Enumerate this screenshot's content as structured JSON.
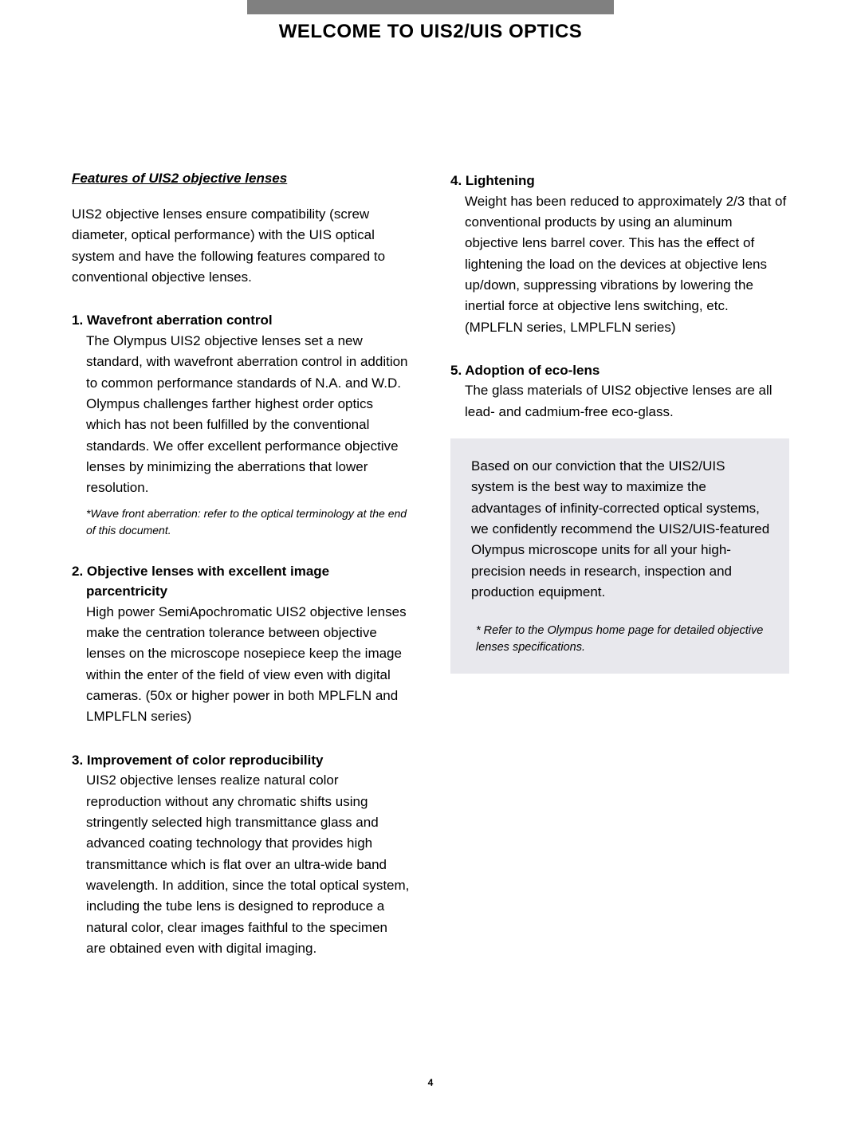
{
  "page": {
    "title": "WELCOME TO UIS2/UIS OPTICS",
    "number": "4",
    "colors": {
      "top_bar": "#808080",
      "box_bg": "#e8e8ed",
      "text": "#000000",
      "page_bg": "#ffffff"
    }
  },
  "left": {
    "section_heading": "Features of UIS2 objective lenses",
    "intro": "UIS2 objective lenses ensure compatibility (screw diameter, optical performance) with the UIS optical system and have the following features compared to conventional objective lenses.",
    "features": [
      {
        "heading": "1. Wavefront aberration control",
        "body": "The Olympus UIS2 objective lenses set a new standard, with wavefront aberration control in addition to common performance standards of N.A. and W.D.  Olympus challenges farther highest order optics which has not been fulfilled by the conventional standards.  We offer excellent performance objective lenses by minimizing the aberrations that lower resolution.",
        "footnote": "*Wave front aberration: refer to the optical terminology at the end of this document."
      },
      {
        "heading": "2. Objective lenses with excellent image",
        "heading2": "parcentricity",
        "body": "High power SemiApochromatic UIS2 objective lenses make the centration tolerance between objective lenses on the microscope nosepiece keep the image within the enter of the field of view even with digital cameras. (50x or higher power in both MPLFLN and LMPLFLN series)"
      },
      {
        "heading": "3. Improvement of color reproducibility",
        "body": "UIS2 objective lenses realize natural color reproduction without any chromatic shifts using stringently selected high transmittance glass and advanced coating technology that provides high transmittance which is flat over an ultra-wide band wavelength.  In addition, since the total optical system, including the tube lens is designed to reproduce a natural color, clear images faithful to the specimen are obtained even with digital imaging."
      }
    ]
  },
  "right": {
    "features": [
      {
        "heading": "4. Lightening",
        "body": "Weight has been reduced to approximately 2/3 that of conventional products by using an aluminum objective lens barrel cover. This has the effect of lightening the load on the devices at objective lens up/down, suppressing vibrations by lowering the inertial force at objective lens switching, etc. (MPLFLN series, LMPLFLN series)"
      },
      {
        "heading": "5. Adoption of eco-lens",
        "body": "The glass materials of UIS2 objective lenses are all lead- and cadmium-free eco-glass."
      }
    ],
    "box": {
      "text": "Based on our conviction that the UIS2/UIS system is the best way to maximize the advantages of infinity-corrected optical systems, we confidently recommend the UIS2/UIS-featured Olympus microscope units for all your high-precision needs in research, inspection and production equipment.",
      "footnote": "* Refer to the Olympus home page for detailed objective lenses specifications."
    }
  }
}
